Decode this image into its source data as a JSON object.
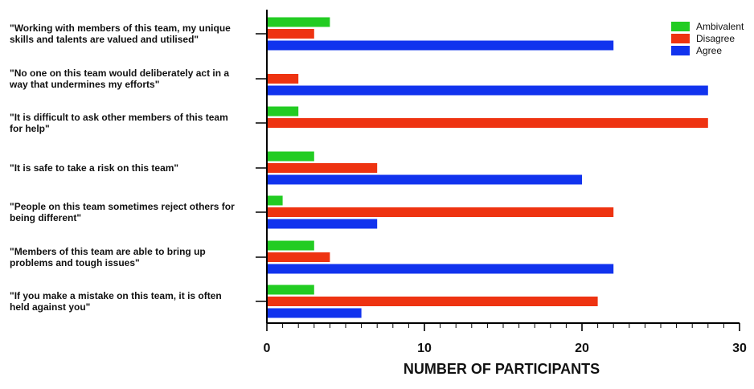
{
  "chart_data": {
    "type": "bar",
    "orientation": "horizontal",
    "categories": [
      [
        "\"Working with members of this team, my unique",
        "skills and talents are valued and utilised\""
      ],
      [
        "\"No one on this team would deliberately act in a",
        "way that undermines my efforts\""
      ],
      [
        "\"It is difficult to ask other members of this team",
        "for help\""
      ],
      [
        "\"It is safe to take a risk on this team\""
      ],
      [
        "\"People on this team sometimes reject others for",
        "being different\""
      ],
      [
        "\"Members of this team are able to bring up",
        "problems and tough issues\""
      ],
      [
        "\"If you make a mistake on this team, it is often",
        "held against you\""
      ]
    ],
    "series": [
      {
        "name": "Ambivalent",
        "color": "#22cc22",
        "values": [
          4,
          0,
          2,
          3,
          1,
          3,
          3
        ]
      },
      {
        "name": "Disagree",
        "color": "#ee3311",
        "values": [
          3,
          2,
          28,
          7,
          22,
          4,
          21
        ]
      },
      {
        "name": "Agree",
        "color": "#1133ee",
        "values": [
          22,
          28,
          0,
          20,
          7,
          22,
          6
        ]
      }
    ],
    "xlabel": "NUMBER OF PARTICIPANTS",
    "xlim": [
      0,
      30
    ],
    "xticks": [
      "0",
      "10",
      "20",
      "30"
    ],
    "legend_position": "top-right",
    "grid": false
  }
}
